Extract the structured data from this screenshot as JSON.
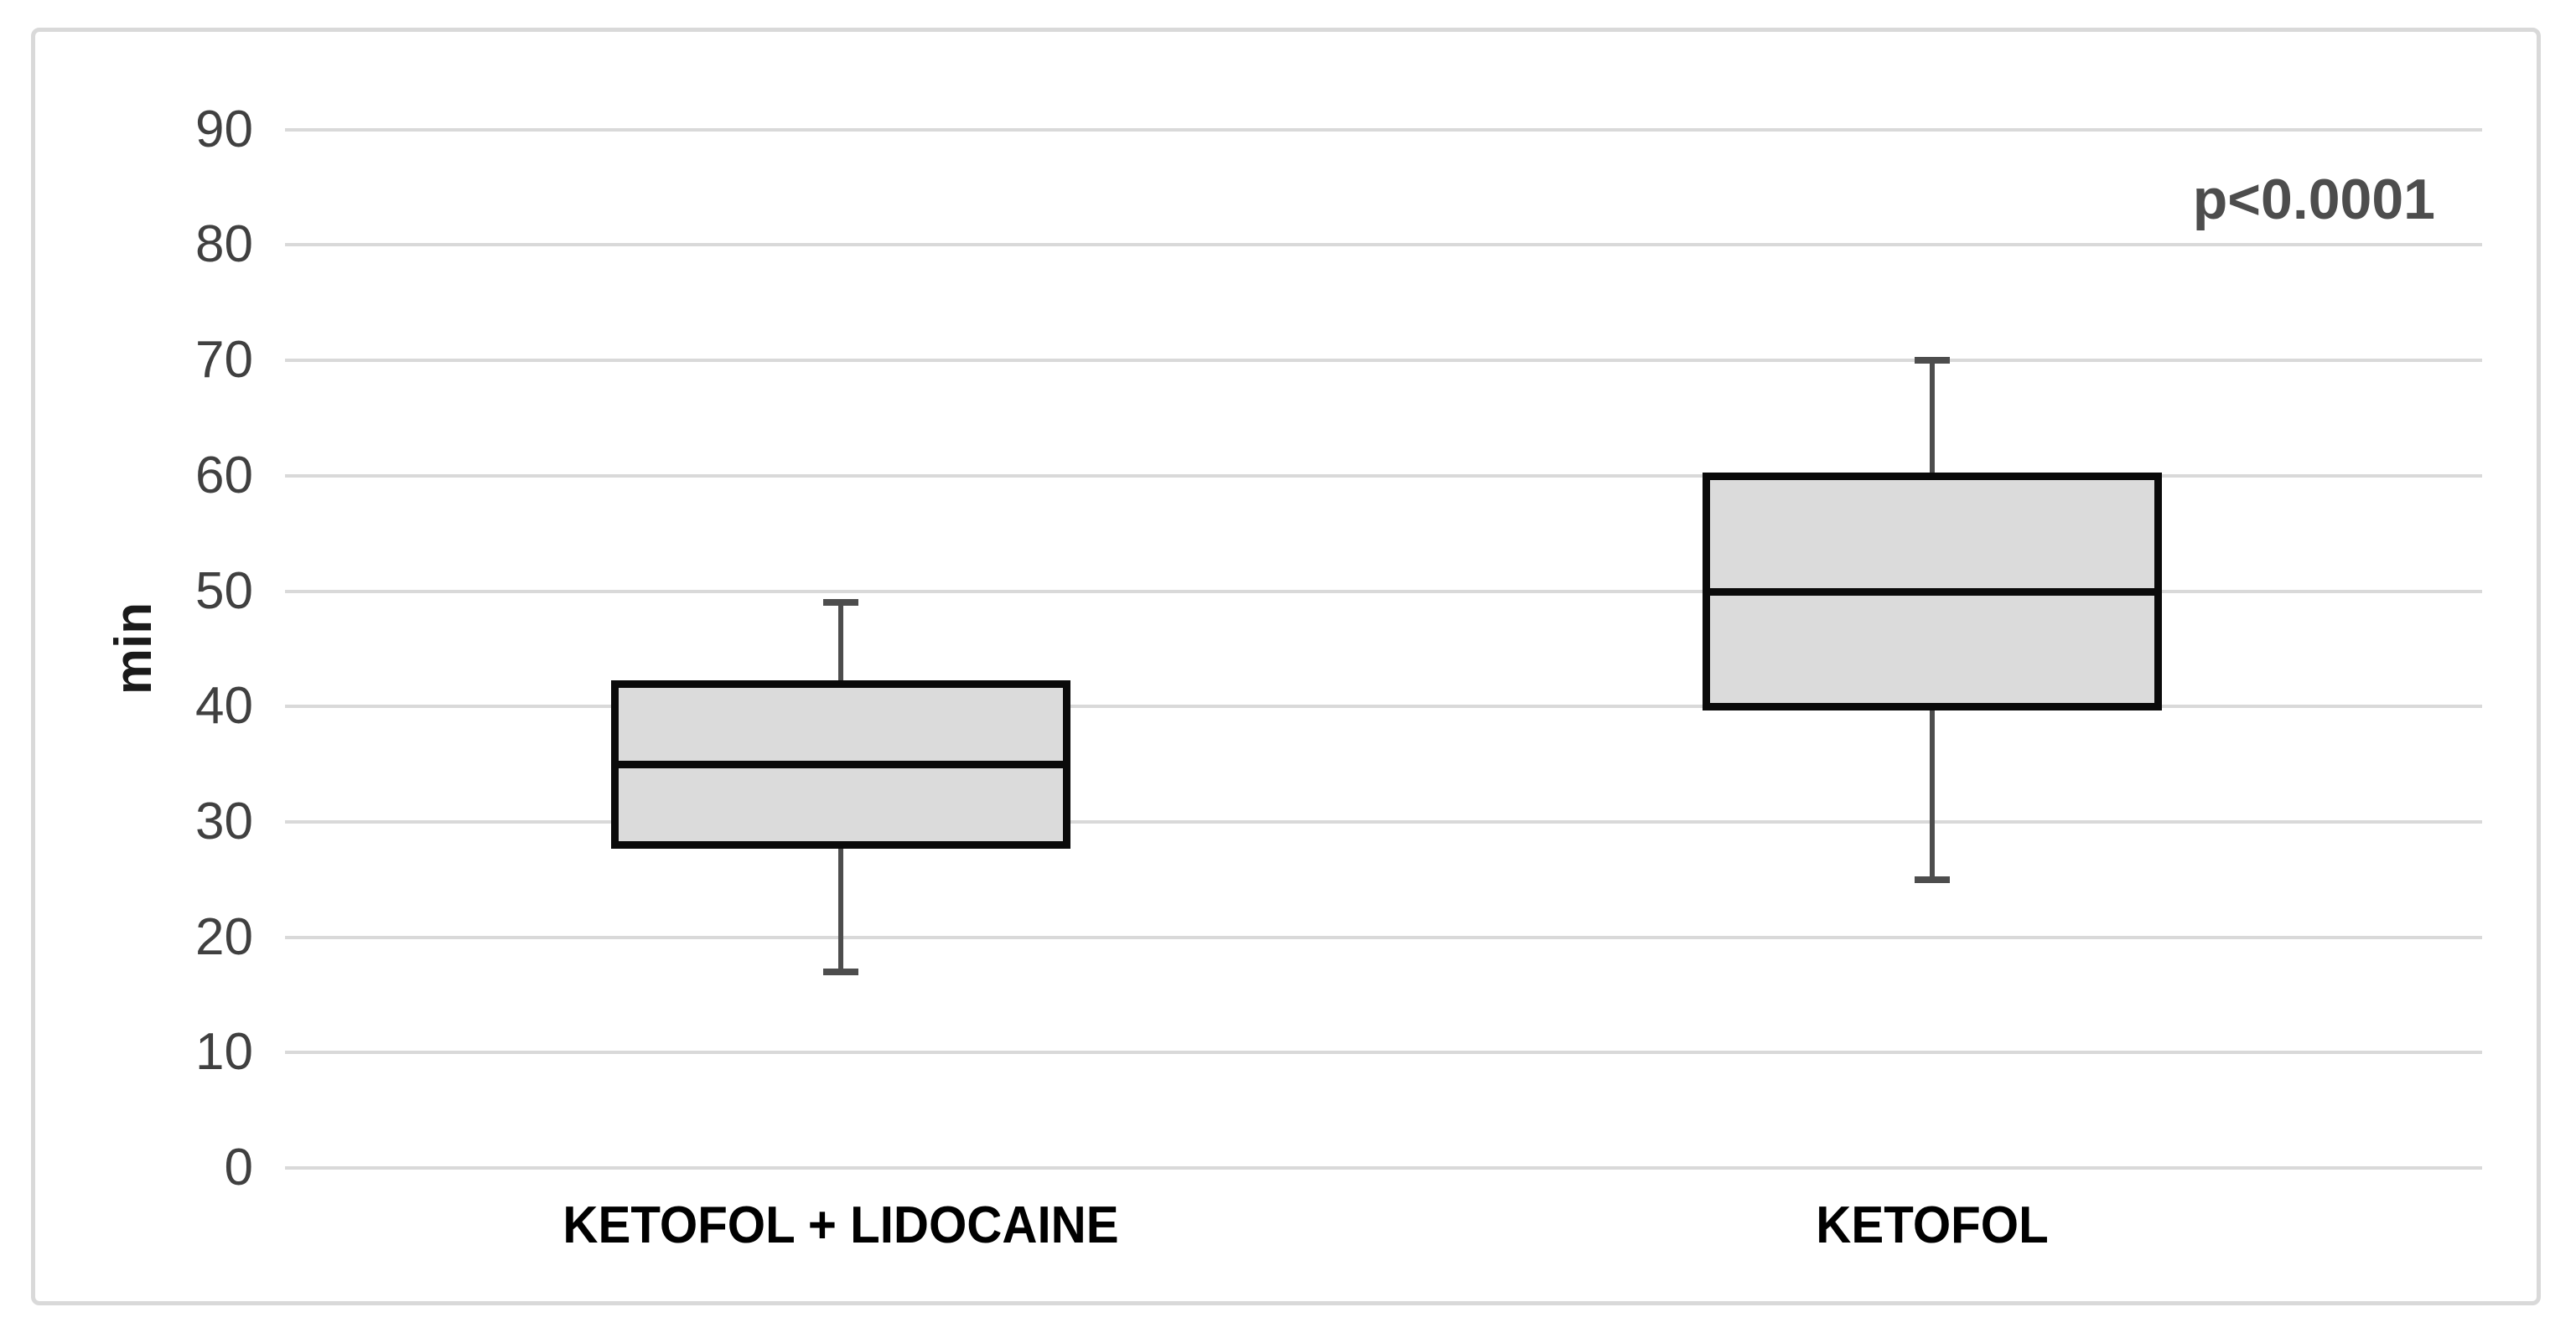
{
  "chart_data": {
    "type": "boxplot",
    "title": "",
    "ylabel": "min",
    "xlabel": "",
    "annotation": "p<0.0001",
    "categories": [
      "KETOFOL + LIDOCAINE",
      "KETOFOL"
    ],
    "series": [
      {
        "name": "KETOFOL + LIDOCAINE",
        "min": 17,
        "q1": 28,
        "median": 35,
        "q3": 42,
        "max": 49
      },
      {
        "name": "KETOFOL",
        "min": 25,
        "q1": 40,
        "median": 50,
        "q3": 60,
        "max": 70
      }
    ],
    "yticks": [
      0,
      10,
      20,
      30,
      40,
      50,
      60,
      70,
      80,
      90
    ],
    "ylim": [
      0,
      90
    ],
    "grid": true,
    "legend": "none",
    "colors": {
      "background": "#ffffff",
      "frame_border": "#d9d9d9",
      "gridline": "#d9d9d9",
      "box_fill": "#dbdbdb",
      "box_border": "#0a0a0a",
      "median": "#0a0a0a",
      "whisker": "#4d4d4d",
      "tick_text": "#404040",
      "category_text": "#000000",
      "annotation_text": "#4d4d4d",
      "axis_label_text": "#1a1a1a"
    }
  }
}
